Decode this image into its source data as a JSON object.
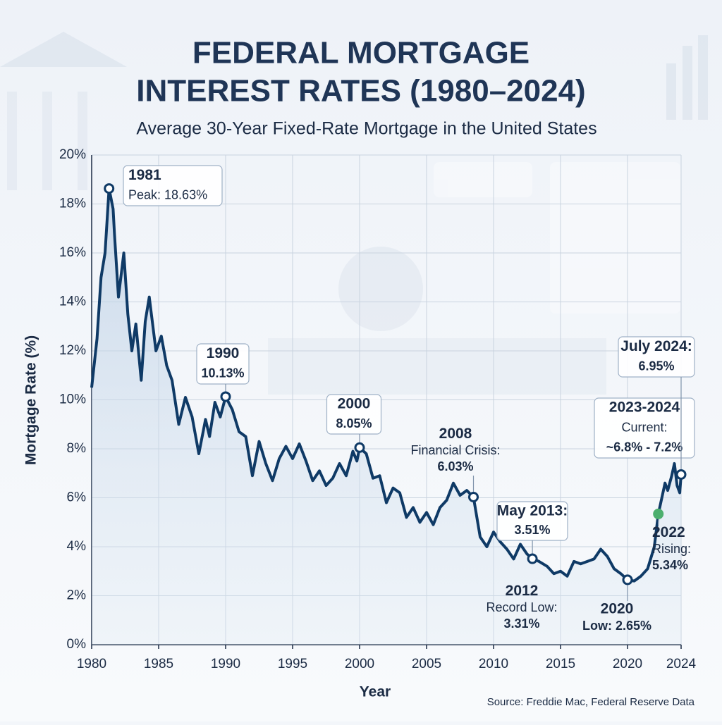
{
  "chart_data": {
    "type": "line",
    "title": "FEDERAL MORTGAGE",
    "title_line2": "INTEREST RATES (1980–2024)",
    "subtitle": "Average 30-Year Fixed-Rate Mortgage in the United States",
    "x_label": "Year",
    "y_label": "Mortgage Rate (%)",
    "source": "Source: Freddie Mac, Federal Reserve Data",
    "color": "#0f3a66",
    "grid": true,
    "xlim": [
      1980,
      2024
    ],
    "xticks": [
      1980,
      1985,
      1990,
      1995,
      2000,
      2005,
      2010,
      2015,
      2020,
      2024
    ],
    "ylim": [
      0,
      20
    ],
    "yticks": [
      {
        "value": 0,
        "label": "0%"
      },
      {
        "value": 2,
        "label": "2%"
      },
      {
        "value": 4,
        "label": "4%"
      },
      {
        "value": 6,
        "label": "6%"
      },
      {
        "value": 8,
        "label": "8%"
      },
      {
        "value": 10,
        "label": "10%"
      },
      {
        "value": 12,
        "label": "12%"
      },
      {
        "value": 14,
        "label": "14%"
      },
      {
        "value": 16,
        "label": "16%"
      },
      {
        "value": 18,
        "label": "18%"
      },
      {
        "value": 20,
        "label": "20%"
      }
    ],
    "x": [
      1980.0,
      1980.4,
      1980.7,
      1981.0,
      1981.3,
      1981.6,
      1981.7,
      1982.0,
      1982.4,
      1982.7,
      1983.0,
      1983.3,
      1983.7,
      1984.0,
      1984.3,
      1984.8,
      1985.2,
      1985.6,
      1986.0,
      1986.5,
      1987.0,
      1987.5,
      1988.0,
      1988.5,
      1988.8,
      1989.2,
      1989.6,
      1990.0,
      1990.5,
      1991.0,
      1991.5,
      1992.0,
      1992.5,
      1993.0,
      1993.5,
      1994.0,
      1994.5,
      1995.0,
      1995.5,
      1996.0,
      1996.5,
      1997.0,
      1997.5,
      1998.0,
      1998.5,
      1999.0,
      1999.5,
      1999.8,
      2000.0,
      2000.5,
      2001.0,
      2001.5,
      2002.0,
      2002.5,
      2003.0,
      2003.5,
      2004.0,
      2004.5,
      2005.0,
      2005.5,
      2006.0,
      2006.5,
      2007.0,
      2007.5,
      2008.0,
      2008.5,
      2009.0,
      2009.5,
      2010.0,
      2010.5,
      2011.0,
      2011.5,
      2012.0,
      2012.5,
      2012.9,
      2013.4,
      2014.0,
      2014.5,
      2015.0,
      2015.5,
      2016.0,
      2016.5,
      2017.0,
      2017.5,
      2018.0,
      2018.5,
      2019.0,
      2019.5,
      2020.0,
      2020.5,
      2021.0,
      2021.5,
      2022.0,
      2022.3,
      2022.8,
      2023.0,
      2023.3,
      2023.5,
      2023.7,
      2023.9,
      2024.0
    ],
    "values": [
      10.5,
      12.5,
      15.0,
      16.0,
      18.63,
      17.8,
      16.8,
      14.2,
      16.0,
      13.5,
      12.0,
      13.1,
      10.8,
      13.2,
      14.2,
      12.0,
      12.6,
      11.4,
      10.8,
      9.0,
      10.1,
      9.3,
      7.8,
      9.2,
      8.5,
      9.9,
      9.3,
      10.13,
      9.6,
      8.7,
      8.5,
      6.9,
      8.3,
      7.4,
      6.7,
      7.6,
      8.1,
      7.6,
      8.2,
      7.5,
      6.7,
      7.1,
      6.5,
      6.8,
      7.4,
      6.9,
      7.9,
      7.5,
      8.05,
      7.8,
      6.8,
      6.9,
      5.8,
      6.4,
      6.2,
      5.2,
      5.6,
      5.0,
      5.4,
      4.9,
      5.6,
      5.9,
      6.6,
      6.1,
      6.3,
      6.03,
      4.4,
      4.0,
      4.6,
      4.2,
      3.9,
      3.5,
      4.1,
      3.7,
      3.51,
      3.4,
      3.2,
      2.9,
      3.0,
      2.8,
      3.4,
      3.3,
      3.4,
      3.5,
      3.9,
      3.6,
      3.1,
      2.9,
      2.65,
      2.6,
      2.8,
      3.1,
      4.0,
      5.34,
      6.6,
      6.3,
      6.9,
      7.4,
      6.5,
      6.2,
      6.95
    ],
    "annotations": [
      {
        "lines": [
          "1981",
          "Peak: 18.63%"
        ],
        "x": 1981.3,
        "value": 18.63,
        "color": "#0f3a66"
      },
      {
        "lines": [
          "1990",
          "10.13%"
        ],
        "x": 1990.0,
        "value": 10.13,
        "color": "#0f3a66"
      },
      {
        "lines": [
          "2000",
          "8.05%"
        ],
        "x": 2000.0,
        "value": 8.05,
        "color": "#0f3a66"
      },
      {
        "lines": [
          "2008",
          "Financial Crisis:",
          "6.03%"
        ],
        "x": 2008.5,
        "value": 6.03,
        "color": "#0f3a66"
      },
      {
        "lines": [
          "May 2013:",
          "3.51%"
        ],
        "x": 2012.9,
        "value": 3.51,
        "color": "#0f3a66"
      },
      {
        "lines": [
          "2012",
          "Record Low:",
          "3.31%"
        ]
      },
      {
        "lines": [
          "2020",
          "Low: 2.65%"
        ],
        "x": 2020.0,
        "value": 2.65,
        "color": "#0f3a66"
      },
      {
        "lines": [
          "2022",
          "Rising:",
          "5.34%"
        ],
        "x": 2022.3,
        "value": 5.34,
        "color": "#4caf6e"
      },
      {
        "lines": [
          "2023-2024",
          "Current:",
          "~6.8% - 7.2%"
        ]
      },
      {
        "lines": [
          "July 2024:",
          "6.95%"
        ],
        "x": 2024.0,
        "value": 6.95,
        "color": "#0f3a66"
      }
    ]
  }
}
